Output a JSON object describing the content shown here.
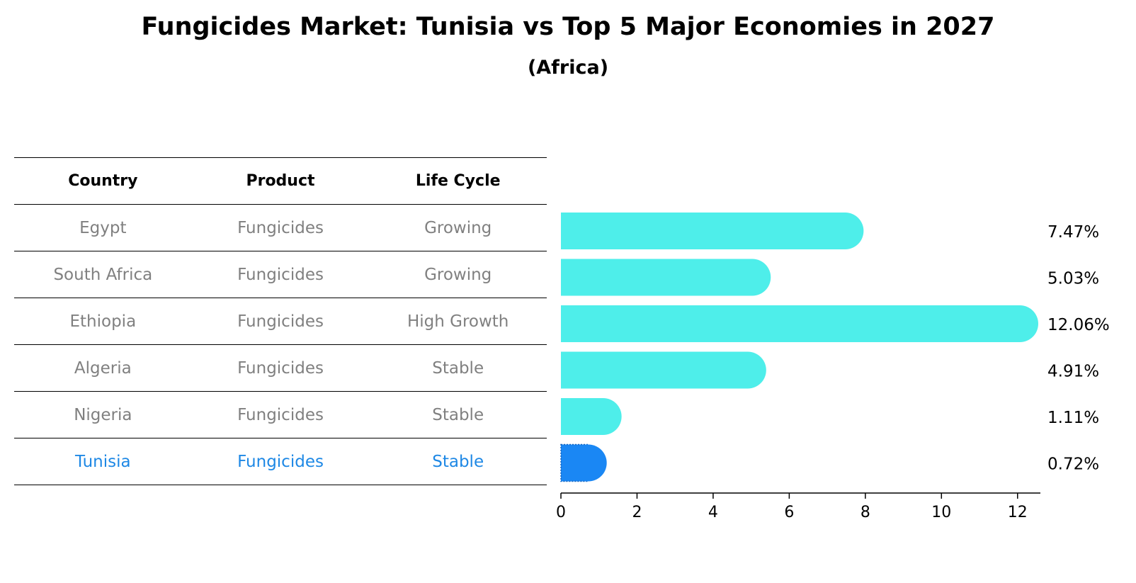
{
  "title": "Fungicides Market: Tunisia vs Top 5 Major Economies in 2027",
  "subtitle": "(Africa)",
  "table": {
    "headers": [
      "Country",
      "Product",
      "Life Cycle"
    ],
    "rows": [
      [
        "Egypt",
        "Fungicides",
        "Growing"
      ],
      [
        "South Africa",
        "Fungicides",
        "Growing"
      ],
      [
        "Ethiopia",
        "Fungicides",
        "High Growth"
      ],
      [
        "Algeria",
        "Fungicides",
        "Stable"
      ],
      [
        "Nigeria",
        "Fungicides",
        "Stable"
      ],
      [
        "Tunisia",
        "Fungicides",
        "Stable"
      ]
    ],
    "highlight_row": 5
  },
  "chart_data": {
    "type": "bar",
    "orientation": "horizontal",
    "categories": [
      "Egypt",
      "South Africa",
      "Ethiopia",
      "Algeria",
      "Nigeria",
      "Tunisia"
    ],
    "values": [
      7.47,
      5.03,
      12.06,
      4.91,
      1.11,
      0.72
    ],
    "value_labels": [
      "7.47%",
      "5.03%",
      "12.06%",
      "4.91%",
      "1.11%",
      "0.72%"
    ],
    "xlim": [
      0,
      12.6
    ],
    "xticks": [
      0,
      2,
      4,
      6,
      8,
      10,
      12
    ],
    "grid": false,
    "colors": {
      "default": "#4eeeea",
      "highlight": "#1a87f4"
    },
    "highlight_index": 5
  }
}
